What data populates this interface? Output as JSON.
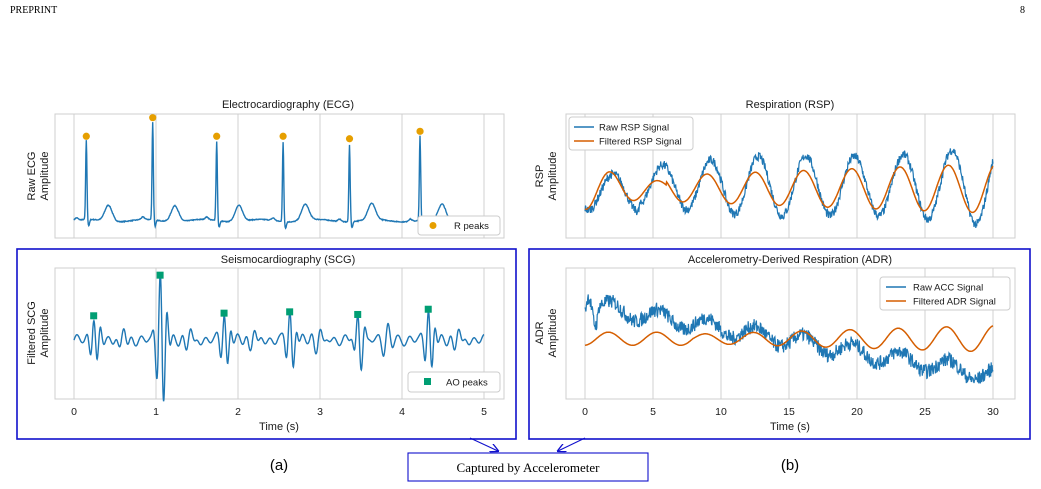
{
  "header": {
    "left": "PREPRINT",
    "page_number": "8"
  },
  "sublabels": {
    "a": "(a)",
    "b": "(b)"
  },
  "caption_box": "Captured by Accelerometer",
  "colors": {
    "signal": "#1f77b4",
    "filtered": "#d55e00",
    "r_peaks": "#e69f00",
    "ao_peaks": "#009e73",
    "highlight_box": "#1010cc",
    "grid": "#d0d0d0"
  },
  "chart_data": [
    {
      "id": "ecg",
      "type": "line",
      "title": "Electrocardiography (ECG)",
      "ylabel": [
        "Raw ECG",
        "Amplitude"
      ],
      "xlim": [
        0,
        5
      ],
      "grid": true,
      "series": [
        {
          "name": "",
          "kind": "ecg",
          "color": "#1f77b4"
        },
        {
          "name": "R peaks",
          "kind": "markers",
          "shape": "circle",
          "color": "#e69f00",
          "x": [
            0.15,
            0.96,
            1.74,
            2.55,
            3.36,
            4.22
          ],
          "y": [
            0.78,
            0.93,
            0.78,
            0.78,
            0.76,
            0.82
          ]
        }
      ],
      "legend": {
        "position": "bottom-right",
        "entries": [
          "R peaks"
        ]
      }
    },
    {
      "id": "rsp",
      "type": "line",
      "title": "Respiration (RSP)",
      "ylabel": [
        "RSP",
        "Amplitude"
      ],
      "xlim": [
        0,
        30
      ],
      "grid": true,
      "series": [
        {
          "name": "Raw RSP Signal",
          "color": "#1f77b4"
        },
        {
          "name": "Filtered RSP Signal",
          "color": "#d55e00"
        }
      ],
      "legend": {
        "position": "top-left",
        "entries": [
          "Raw RSP Signal",
          "Filtered RSP Signal"
        ]
      }
    },
    {
      "id": "scg",
      "type": "line",
      "title": "Seismocardiography (SCG)",
      "ylabel": [
        "Filtered SCG",
        "Amplitude"
      ],
      "xlabel": "Time (s)",
      "xlim": [
        0,
        5
      ],
      "xticks": [
        "0",
        "1",
        "2",
        "3",
        "4",
        "5"
      ],
      "grid": true,
      "series": [
        {
          "name": "",
          "kind": "scg",
          "color": "#1f77b4"
        },
        {
          "name": "AO peaks",
          "kind": "markers",
          "shape": "square",
          "color": "#009e73",
          "x": [
            0.24,
            1.05,
            1.83,
            2.63,
            3.46,
            4.32
          ],
          "y": [
            0.62,
            0.93,
            0.64,
            0.65,
            0.63,
            0.67
          ]
        }
      ],
      "legend": {
        "position": "bottom-right",
        "entries": [
          "AO peaks"
        ]
      }
    },
    {
      "id": "adr",
      "type": "line",
      "title": "Accelerometry-Derived Respiration (ADR)",
      "ylabel": [
        "ADR",
        "Amplitude"
      ],
      "xlabel": "Time (s)",
      "xlim": [
        0,
        30
      ],
      "xticks": [
        "0",
        "5",
        "10",
        "15",
        "20",
        "25",
        "30"
      ],
      "grid": true,
      "series": [
        {
          "name": "Raw ACC Signal",
          "color": "#1f77b4"
        },
        {
          "name": "Filtered ADR Signal",
          "color": "#d55e00"
        }
      ],
      "legend": {
        "position": "top-right",
        "entries": [
          "Raw ACC Signal",
          "Filtered ADR Signal"
        ]
      }
    }
  ]
}
